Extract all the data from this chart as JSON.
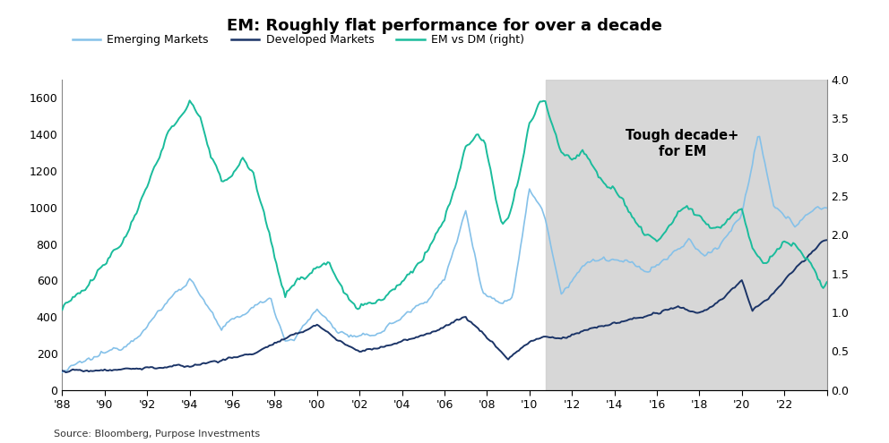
{
  "title": "EM: Roughly flat performance for over a decade",
  "source": "Source: Bloomberg, Purpose Investments",
  "annotation": "Tough decade+\nfor EM",
  "shade_start": 2010.75,
  "em_color": "#85C1E9",
  "dm_color": "#1B3467",
  "ratio_color": "#1ABC9C",
  "ylim_left": [
    0,
    1700
  ],
  "ylim_right": [
    0.0,
    4.0
  ],
  "yticks_left": [
    0,
    200,
    400,
    600,
    800,
    1000,
    1200,
    1400,
    1600
  ],
  "yticks_right": [
    0.0,
    0.5,
    1.0,
    1.5,
    2.0,
    2.5,
    3.0,
    3.5,
    4.0
  ],
  "xtick_years": [
    1988,
    1990,
    1992,
    1994,
    1996,
    1998,
    2000,
    2002,
    2004,
    2006,
    2008,
    2010,
    2012,
    2014,
    2016,
    2018,
    2020,
    2022,
    2024
  ],
  "xtick_labels": [
    "'88",
    "'90",
    "'92",
    "'94",
    "'96",
    "'98",
    "'00",
    "'02",
    "'04",
    "'06",
    "'08",
    "'10",
    "'12",
    "'14",
    "'16",
    "'18",
    "'20",
    "'22",
    ""
  ]
}
